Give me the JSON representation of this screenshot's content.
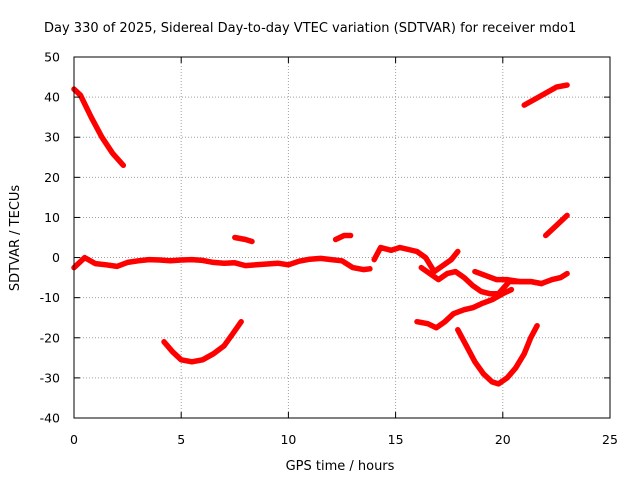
{
  "chart_data": {
    "type": "line",
    "title": "Day 330 of 2025, Sidereal Day-to-day VTEC variation (SDTVAR) for receiver mdo1",
    "xlabel": "GPS time / hours",
    "ylabel": "SDTVAR / TECUs",
    "xlim": [
      0,
      25
    ],
    "ylim": [
      -40,
      50
    ],
    "xticks": [
      "0",
      "5",
      "10",
      "15",
      "20",
      "25"
    ],
    "yticks": [
      "50",
      "40",
      "30",
      "20",
      "10",
      "0",
      "-10",
      "-20",
      "-30",
      "-40"
    ],
    "grid": true,
    "legend": "none",
    "series_color": "#ff0000",
    "series": [
      {
        "name": "trace-1",
        "x": [
          0,
          0.3,
          0.8,
          1.3,
          1.8,
          2.3
        ],
        "y": [
          42,
          40.5,
          35,
          30,
          26,
          23
        ]
      },
      {
        "name": "trace-2",
        "x": [
          4.2,
          4.6,
          5,
          5.5,
          6,
          6.5,
          7,
          7.4,
          7.8
        ],
        "y": [
          -21,
          -23.5,
          -25.5,
          -26,
          -25.5,
          -24,
          -22,
          -19,
          -16
        ]
      },
      {
        "name": "trace-3",
        "x": [
          7.5,
          8,
          8.3
        ],
        "y": [
          5,
          4.5,
          4
        ]
      },
      {
        "name": "trace-4",
        "x": [
          0,
          0.5,
          1,
          1.5,
          2,
          2.5,
          3,
          3.5,
          4,
          4.5,
          5,
          5.5,
          6,
          6.5,
          7,
          7.5,
          8,
          8.5,
          9,
          9.5,
          10,
          10.5,
          11,
          11.5,
          12,
          12.5,
          13,
          13.5,
          13.8
        ],
        "y": [
          -2.5,
          0,
          -1.5,
          -1.8,
          -2.2,
          -1.2,
          -0.8,
          -0.5,
          -0.6,
          -0.8,
          -0.6,
          -0.5,
          -0.7,
          -1.2,
          -1.4,
          -1.3,
          -2,
          -1.8,
          -1.6,
          -1.4,
          -1.8,
          -0.9,
          -0.4,
          -0.2,
          -0.5,
          -0.8,
          -2.5,
          -3,
          -2.8
        ]
      },
      {
        "name": "trace-5",
        "x": [
          12.2,
          12.6,
          12.9
        ],
        "y": [
          4.5,
          5.5,
          5.5
        ]
      },
      {
        "name": "trace-6",
        "x": [
          14,
          14.3,
          14.8,
          15.2,
          15.6,
          16,
          16.4,
          16.8,
          17.2,
          17.6,
          17.9
        ],
        "y": [
          -0.5,
          2.5,
          1.8,
          2.5,
          2,
          1.5,
          0,
          -3.5,
          -2,
          -0.5,
          1.5
        ]
      },
      {
        "name": "trace-7",
        "x": [
          16.2,
          16.6,
          17,
          17.4,
          17.8,
          18.2,
          18.6,
          19,
          19.4,
          19.8,
          20.3,
          20.8,
          21.3,
          21.8,
          22.3,
          22.7,
          23
        ],
        "y": [
          -2.5,
          -4,
          -5.5,
          -4,
          -3.5,
          -5,
          -7,
          -8.5,
          -9,
          -9,
          -6,
          -6,
          -6,
          -6.5,
          -5.5,
          -5,
          -4
        ]
      },
      {
        "name": "trace-8",
        "x": [
          18.7,
          19.2,
          19.7,
          20.2,
          20.8,
          21.3,
          21.8
        ],
        "y": [
          -3.5,
          -4.5,
          -5.5,
          -5.5,
          -6,
          -6,
          -6.5
        ]
      },
      {
        "name": "trace-9",
        "x": [
          16,
          16.5,
          16.9,
          17.3,
          17.7,
          18.2,
          18.6,
          19,
          19.5,
          20,
          20.4
        ],
        "y": [
          -16,
          -16.5,
          -17.5,
          -16,
          -14,
          -13,
          -12.5,
          -11.5,
          -10.5,
          -9,
          -8
        ]
      },
      {
        "name": "trace-10",
        "x": [
          17.9,
          18.3,
          18.7,
          19.1,
          19.5,
          19.8,
          20.2,
          20.6,
          21,
          21.3,
          21.6
        ],
        "y": [
          -18,
          -22,
          -26,
          -29,
          -31,
          -31.5,
          -30,
          -27.5,
          -24,
          -20,
          -17
        ]
      },
      {
        "name": "trace-11",
        "x": [
          21,
          21.5,
          22,
          22.5,
          23
        ],
        "y": [
          38,
          39.5,
          41,
          42.5,
          43
        ]
      },
      {
        "name": "trace-12",
        "x": [
          22,
          22.5,
          23
        ],
        "y": [
          5.5,
          8,
          10.5
        ]
      }
    ]
  }
}
